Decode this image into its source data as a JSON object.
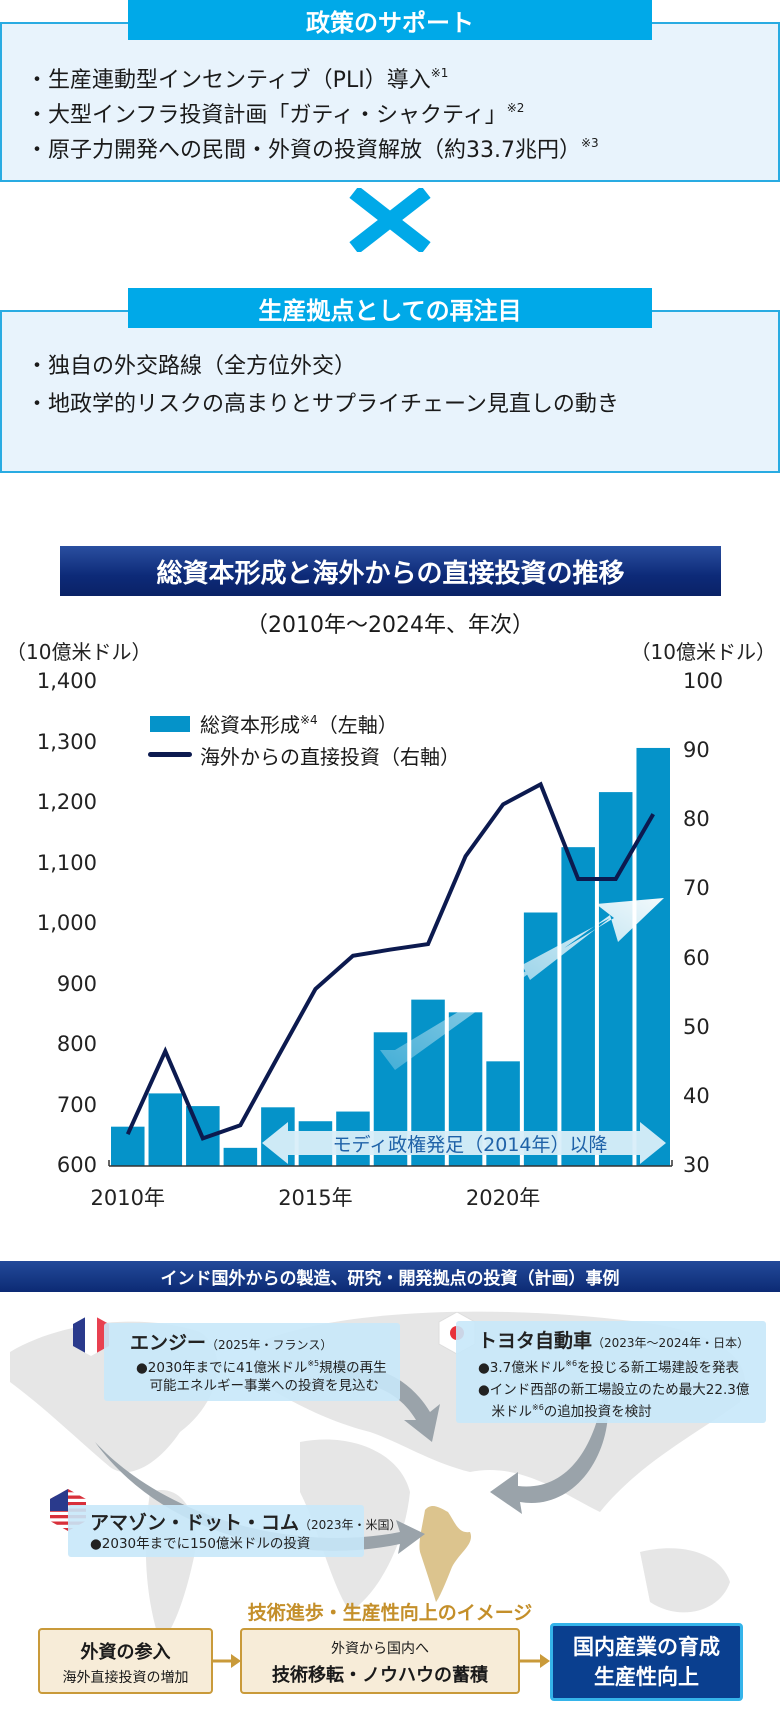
{
  "policy": {
    "title": "政策のサポート",
    "items": [
      {
        "text": "・生産連動型インセンティブ（PLI）導入",
        "note": "※1"
      },
      {
        "text": "・大型インフラ投資計画「ガティ・シャクティ」",
        "note": "※2"
      },
      {
        "text": "・原子力開発への民間・外資の投資解放（約33.7兆円）",
        "note": "※3"
      }
    ]
  },
  "cross_icon": "multiply-cross-icon",
  "production": {
    "title": "生産拠点としての再注目",
    "items": [
      "・独自の外交路線（全方位外交）",
      "・地政学的リスクの高まりとサプライチェーン見直しの動き"
    ]
  },
  "chart_data": {
    "type": "bar+line",
    "title": "総資本形成と海外からの直接投資の推移",
    "subtitle": "（2010年～2024年、年次）",
    "ylabel_left": "（10億米ドル）",
    "ylabel_right": "（10億米ドル）",
    "ylim_left": [
      600,
      1400
    ],
    "ylim_right": [
      30,
      100
    ],
    "yticks_left": [
      "600",
      "700",
      "800",
      "900",
      "1,000",
      "1,100",
      "1,200",
      "1,300",
      "1,400"
    ],
    "yticks_right": [
      "30",
      "40",
      "50",
      "60",
      "70",
      "80",
      "90",
      "100"
    ],
    "x": [
      2010,
      2011,
      2012,
      2013,
      2014,
      2015,
      2016,
      2017,
      2018,
      2019,
      2020,
      2021,
      2022,
      2023,
      2024
    ],
    "xtick_labels": [
      {
        "year": 2010,
        "label": "2010年"
      },
      {
        "year": 2015,
        "label": "2015年"
      },
      {
        "year": 2020,
        "label": "2020年"
      }
    ],
    "series": [
      {
        "name": "総資本形成",
        "note": "※4",
        "axis_label": "（左軸）",
        "type": "bar",
        "color": "#0593c9",
        "values": [
          665,
          720,
          699,
          630,
          697,
          674,
          690,
          821,
          875,
          854,
          773,
          1019,
          1127,
          1218,
          1291
        ]
      },
      {
        "name": "海外からの直接投資",
        "axis_label": "（右軸）",
        "type": "line",
        "color": "#0c1a4f",
        "values": [
          34.6,
          46.6,
          34.0,
          35.9,
          45.8,
          55.6,
          60.4,
          61.3,
          62.1,
          74.8,
          82.3,
          85.2,
          71.5,
          71.5,
          80.9
        ]
      }
    ],
    "annotation": "モディ政権発足（2014年）以降",
    "legend_position": "top-left",
    "grid": false
  },
  "cases": {
    "title": "インド国外からの製造、研究・開発拠点の投資（計画）事例",
    "engie": {
      "flag": "france-flag-icon",
      "name": "エンジー",
      "meta": "（2025年・フランス）",
      "lines": [
        [
          "●2030年までに41億米ドル",
          "※5",
          "規模の再生"
        ],
        [
          "　可能エネルギー事業への投資を見込む",
          "",
          ""
        ]
      ]
    },
    "toyota": {
      "flag": "japan-flag-icon",
      "name": "トヨタ自動車",
      "meta": "（2023年～2024年・日本）",
      "lines": [
        [
          "●3.7億米ドル",
          "※6",
          "を投じる新工場建設を発表"
        ],
        [
          "●インド西部の新工場設立のため最大22.3億",
          "",
          ""
        ],
        [
          "　米ドル",
          "※6",
          "の追加投資を検討"
        ]
      ]
    },
    "amazon": {
      "flag": "usa-flag-icon",
      "name": "アマゾン・ドット・コム",
      "meta": "（2023年・米国）",
      "lines": [
        [
          "●2030年までに150億米ドルの投資",
          "",
          ""
        ]
      ]
    }
  },
  "flow": {
    "title": "技術進歩・生産性向上のイメージ",
    "step1": {
      "main": "外資の参入",
      "sub": "海外直接投資の増加"
    },
    "step2": {
      "sub": "外資から国内へ",
      "main": "技術移転・ノウハウの蓄積"
    },
    "step3": {
      "line1": "国内産業の育成",
      "line2": "生産性向上"
    }
  }
}
